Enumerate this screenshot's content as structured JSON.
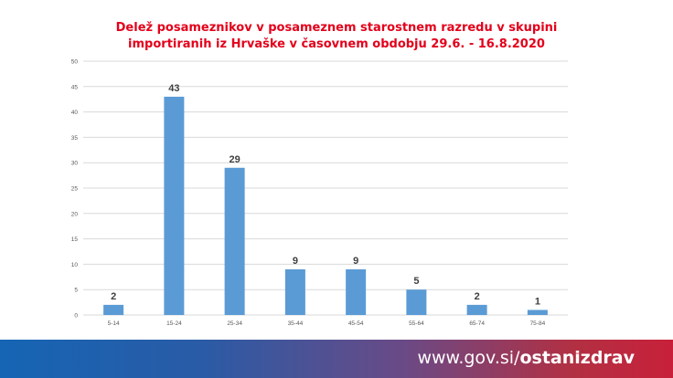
{
  "chart_data": {
    "type": "bar",
    "title_lines": [
      "Delež posameznikov v posameznem starostnem razredu v skupini",
      "importiranih iz Hrvaške v časovnem obdobju 29.6. - 16.8.2020"
    ],
    "categories": [
      "5-14",
      "15-24",
      "25-34",
      "35-44",
      "45-54",
      "55-64",
      "65-74",
      "75-84"
    ],
    "values": [
      2,
      43,
      29,
      9,
      9,
      5,
      2,
      1
    ],
    "ylim": [
      0,
      50
    ],
    "yticks": [
      0,
      5,
      10,
      15,
      20,
      25,
      30,
      35,
      40,
      45,
      50
    ],
    "grid": true,
    "bar_color": "#5b9bd5",
    "data_labels": true
  },
  "footer": {
    "url_prefix": "www.gov.si/",
    "url_bold": "ostanizdrav"
  },
  "colors": {
    "title": "#e3001b",
    "grid": "#d9d9d9",
    "axis_text": "#595959",
    "data_label": "#404040"
  }
}
